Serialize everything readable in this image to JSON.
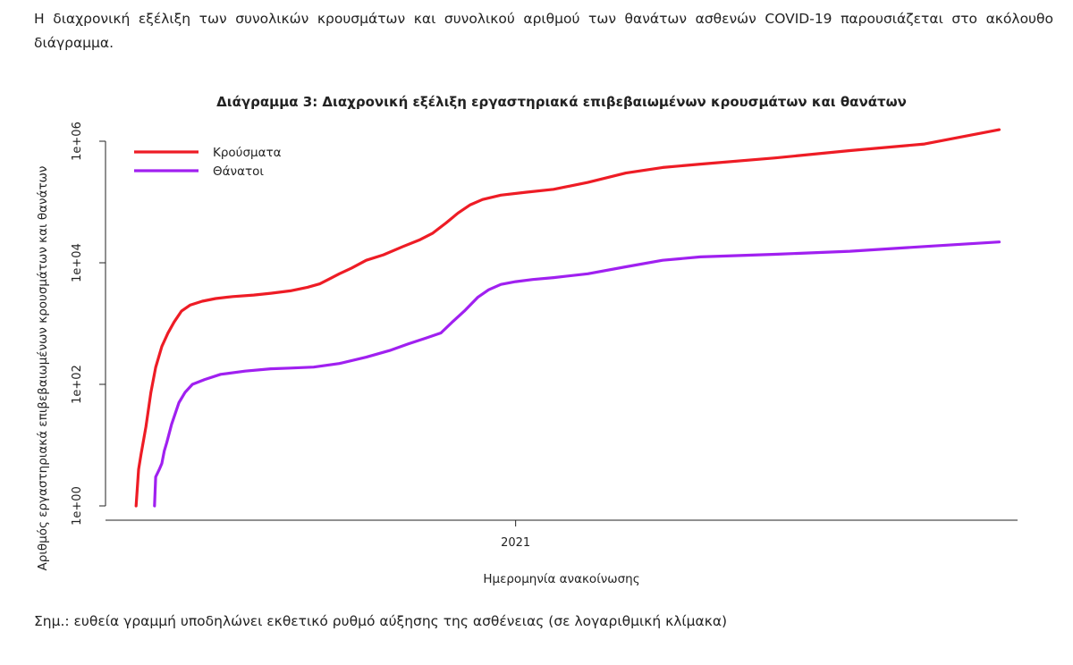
{
  "intro_text": "Η διαχρονική εξέλιξη των συνολικών κρουσμάτων και συνολικού αριθμού των θανάτων ασθενών COVID-19 παρουσιάζεται στο ακόλουθο διάγραμμα.",
  "note_text": "Σημ.: ευθεία γραμμή υποδηλώνει εκθετικό ρυθμό αύξησης της ασθένειας (σε λογαριθμική κλίμακα)",
  "chart_data": {
    "type": "line",
    "title": "Διάγραμμα 3: Διαχρονική εξέλιξη εργαστηριακά επιβεβαιωμένων κρουσμάτων και θανάτων",
    "xlabel": "Ημερομηνία ανακοίνωσης",
    "ylabel": "Αριθμός εργαστηριακά επιβεβαιωμένων κρουσμάτων και θανάτων",
    "y_scale": "log10",
    "ylim": [
      1,
      1000000
    ],
    "y_ticks": [
      1,
      100,
      10000,
      1000000
    ],
    "y_tick_labels": [
      "1e+00",
      "1e+02",
      "1e+04",
      "1e+06"
    ],
    "xlim": [
      "2020-02-01",
      "2022-02-15"
    ],
    "x_ticks": [
      "2021-01-01"
    ],
    "x_tick_labels": [
      "2021"
    ],
    "legend_position": "top-left",
    "series": [
      {
        "name": "Κρούσματα",
        "color": "#ee1c25",
        "points": [
          [
            "2020-02-26",
            1
          ],
          [
            "2020-02-28",
            4
          ],
          [
            "2020-03-01",
            7
          ],
          [
            "2020-03-05",
            20
          ],
          [
            "2020-03-09",
            73
          ],
          [
            "2020-03-13",
            190
          ],
          [
            "2020-03-18",
            420
          ],
          [
            "2020-03-23",
            695
          ],
          [
            "2020-03-28",
            1061
          ],
          [
            "2020-04-03",
            1600
          ],
          [
            "2020-04-10",
            2010
          ],
          [
            "2020-04-20",
            2330
          ],
          [
            "2020-05-01",
            2580
          ],
          [
            "2020-05-15",
            2780
          ],
          [
            "2020-06-01",
            2950
          ],
          [
            "2020-06-15",
            3150
          ],
          [
            "2020-07-01",
            3450
          ],
          [
            "2020-07-15",
            3950
          ],
          [
            "2020-07-25",
            4500
          ],
          [
            "2020-08-01",
            5300
          ],
          [
            "2020-08-10",
            6600
          ],
          [
            "2020-08-20",
            8200
          ],
          [
            "2020-09-01",
            11000
          ],
          [
            "2020-09-15",
            13500
          ],
          [
            "2020-10-01",
            18500
          ],
          [
            "2020-10-15",
            24000
          ],
          [
            "2020-10-25",
            30500
          ],
          [
            "2020-11-05",
            45000
          ],
          [
            "2020-11-15",
            66000
          ],
          [
            "2020-11-25",
            90000
          ],
          [
            "2020-12-05",
            110000
          ],
          [
            "2020-12-20",
            130000
          ],
          [
            "2021-01-10",
            145000
          ],
          [
            "2021-02-01",
            162000
          ],
          [
            "2021-03-01",
            210000
          ],
          [
            "2021-04-01",
            300000
          ],
          [
            "2021-05-01",
            370000
          ],
          [
            "2021-06-01",
            420000
          ],
          [
            "2021-08-01",
            530000
          ],
          [
            "2021-10-01",
            700000
          ],
          [
            "2021-12-01",
            900000
          ],
          [
            "2022-01-31",
            1550000
          ]
        ]
      },
      {
        "name": "Θάνατοι",
        "color": "#a020f0",
        "points": [
          [
            "2020-03-12",
            1
          ],
          [
            "2020-03-13",
            3
          ],
          [
            "2020-03-16",
            4
          ],
          [
            "2020-03-18",
            5
          ],
          [
            "2020-03-20",
            8
          ],
          [
            "2020-03-22",
            11
          ],
          [
            "2020-03-26",
            22
          ],
          [
            "2020-04-01",
            50
          ],
          [
            "2020-04-06",
            74
          ],
          [
            "2020-04-12",
            100
          ],
          [
            "2020-04-22",
            120
          ],
          [
            "2020-05-05",
            146
          ],
          [
            "2020-05-25",
            165
          ],
          [
            "2020-06-15",
            180
          ],
          [
            "2020-07-01",
            185
          ],
          [
            "2020-07-20",
            192
          ],
          [
            "2020-08-10",
            220
          ],
          [
            "2020-09-01",
            280
          ],
          [
            "2020-09-20",
            360
          ],
          [
            "2020-10-05",
            460
          ],
          [
            "2020-10-20",
            580
          ],
          [
            "2020-11-01",
            700
          ],
          [
            "2020-11-10",
            1050
          ],
          [
            "2020-11-20",
            1600
          ],
          [
            "2020-12-01",
            2700
          ],
          [
            "2020-12-10",
            3600
          ],
          [
            "2020-12-20",
            4400
          ],
          [
            "2021-01-01",
            4900
          ],
          [
            "2021-01-15",
            5300
          ],
          [
            "2021-02-01",
            5700
          ],
          [
            "2021-03-01",
            6600
          ],
          [
            "2021-04-01",
            8600
          ],
          [
            "2021-05-01",
            11000
          ],
          [
            "2021-06-01",
            12500
          ],
          [
            "2021-08-01",
            13800
          ],
          [
            "2021-10-01",
            15500
          ],
          [
            "2021-12-01",
            18500
          ],
          [
            "2022-01-31",
            22000
          ]
        ]
      }
    ]
  }
}
